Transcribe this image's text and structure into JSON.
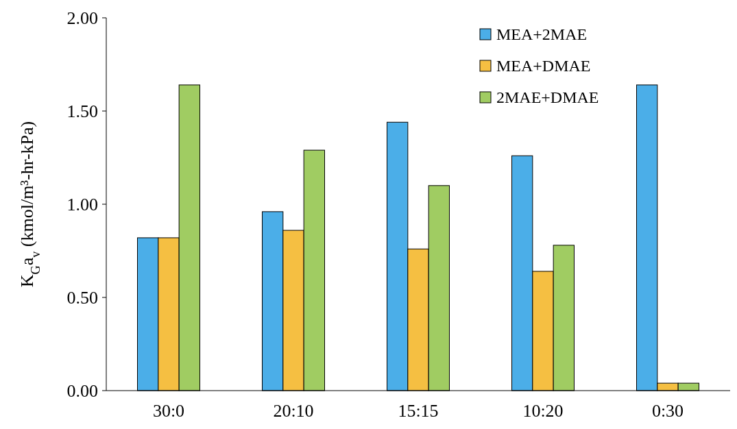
{
  "chart_data": {
    "type": "bar",
    "ylabel": "K$_{G}$a$_{v}$ (kmol/m³-hr-kPa)",
    "categories": [
      "30:0",
      "20:10",
      "15:15",
      "10:20",
      "0:30"
    ],
    "series": [
      {
        "name": "MEA+2MAE",
        "color": "#4baee8",
        "values": [
          0.82,
          0.96,
          1.44,
          1.26,
          1.64
        ]
      },
      {
        "name": "MEA+DMAE",
        "color": "#f5bf42",
        "values": [
          0.82,
          0.86,
          0.76,
          0.64,
          0.04
        ]
      },
      {
        "name": "2MAE+DMAE",
        "color": "#a0cc62",
        "values": [
          1.64,
          1.29,
          1.1,
          0.78,
          0.04
        ]
      }
    ],
    "ylim": [
      0,
      2
    ],
    "yticks": [
      {
        "value": 0,
        "label": "0.00"
      },
      {
        "value": 0.5,
        "label": "0.50"
      },
      {
        "value": 1,
        "label": "1.00"
      },
      {
        "value": 1.5,
        "label": "1.50"
      },
      {
        "value": 2,
        "label": "2.00"
      }
    ],
    "legend": "top right"
  }
}
